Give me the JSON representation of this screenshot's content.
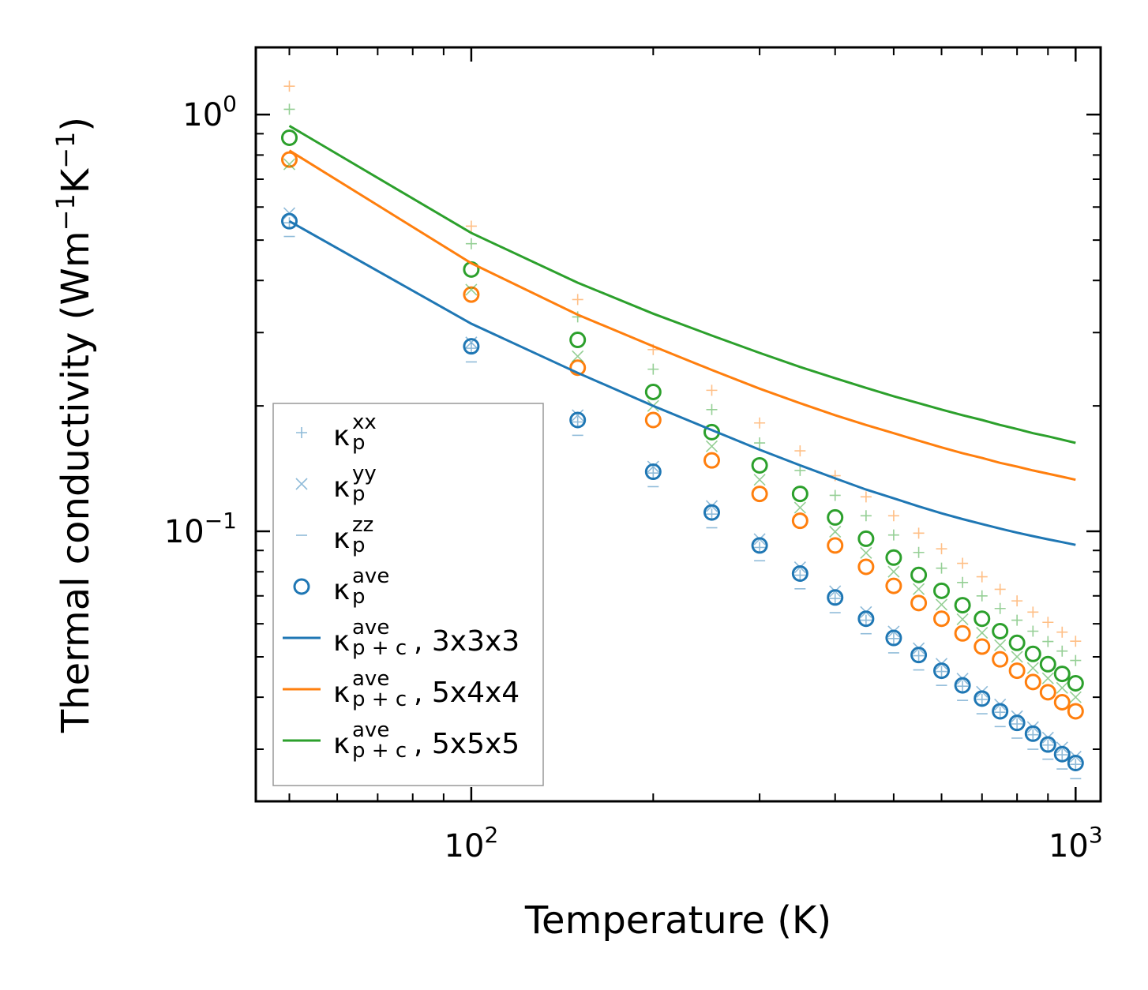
{
  "chart_data": {
    "type": "scatter",
    "xscale": "log",
    "yscale": "log",
    "xlim": [
      44,
      1100
    ],
    "ylim": [
      0.0225,
      1.45
    ],
    "xlabel": "Temperature (K)",
    "ylabel_main": "Thermal conductivity (Wm",
    "ylabel_exp1": "−1",
    "ylabel_mid": "K",
    "ylabel_exp2": "−1",
    "ylabel_end": ")",
    "x_ticks": [
      {
        "value": 100,
        "base": "10",
        "exp": "2"
      },
      {
        "value": 1000,
        "base": "10",
        "exp": "3"
      }
    ],
    "y_ticks": [
      {
        "value": 1,
        "base": "10",
        "exp": "0"
      },
      {
        "value": 0.1,
        "base": "10",
        "exp": "−1"
      }
    ],
    "x": [
      50,
      100,
      150,
      200,
      250,
      300,
      350,
      400,
      450,
      500,
      550,
      600,
      650,
      700,
      750,
      800,
      850,
      900,
      950,
      1000
    ],
    "colors": {
      "blue": "#1f77b4",
      "orange": "#ff7f0e",
      "green": "#2ca02c"
    },
    "series": [
      {
        "name": "3x3x3 kxx",
        "color": "#1f77b4",
        "marker": "plus",
        "faded": true,
        "values": [
          0.55,
          0.275,
          0.183,
          0.138,
          0.11,
          0.0915,
          0.0785,
          0.069,
          0.0612,
          0.0553,
          0.0503,
          0.0461,
          0.0425,
          0.0395,
          0.0368,
          0.0345,
          0.0325,
          0.0307,
          0.0291,
          0.0276
        ]
      },
      {
        "name": "3x3x3 kyy",
        "color": "#1f77b4",
        "marker": "cross",
        "faded": true,
        "values": [
          0.58,
          0.284,
          0.19,
          0.143,
          0.115,
          0.0958,
          0.082,
          0.0718,
          0.064,
          0.0575,
          0.0524,
          0.0481,
          0.0443,
          0.0412,
          0.0384,
          0.036,
          0.0339,
          0.032,
          0.0303,
          0.0288
        ]
      },
      {
        "name": "3x3x3 kzz",
        "color": "#1f77b4",
        "marker": "dash",
        "faded": true,
        "values": [
          0.51,
          0.255,
          0.17,
          0.128,
          0.102,
          0.085,
          0.0728,
          0.0638,
          0.0568,
          0.0511,
          0.0465,
          0.0427,
          0.0393,
          0.0365,
          0.034,
          0.0319,
          0.03,
          0.0284,
          0.0269,
          0.0255
        ]
      },
      {
        "name": "3x3x3 kave",
        "color": "#1f77b4",
        "marker": "circle",
        "faded": false,
        "values": [
          0.555,
          0.278,
          0.185,
          0.139,
          0.111,
          0.0925,
          0.0792,
          0.0694,
          0.0617,
          0.0555,
          0.0505,
          0.0463,
          0.0427,
          0.0397,
          0.037,
          0.0347,
          0.0327,
          0.0308,
          0.0292,
          0.0278
        ]
      },
      {
        "name": "5x4x4 kxx",
        "color": "#ff7f0e",
        "marker": "plus",
        "faded": true,
        "values": [
          1.17,
          0.54,
          0.36,
          0.273,
          0.218,
          0.182,
          0.156,
          0.136,
          0.121,
          0.109,
          0.099,
          0.0908,
          0.0838,
          0.0778,
          0.0726,
          0.0681,
          0.064,
          0.0605,
          0.0573,
          0.0545
        ]
      },
      {
        "name": "5x4x4 kave",
        "color": "#ff7f0e",
        "marker": "circle",
        "faded": false,
        "values": [
          0.78,
          0.37,
          0.247,
          0.185,
          0.148,
          0.123,
          0.106,
          0.0925,
          0.0822,
          0.074,
          0.0673,
          0.0617,
          0.0569,
          0.0529,
          0.0493,
          0.0463,
          0.0435,
          0.0411,
          0.0389,
          0.037
        ]
      },
      {
        "name": "5x5x5 kxx",
        "color": "#2ca02c",
        "marker": "plus",
        "faded": true,
        "values": [
          1.03,
          0.49,
          0.327,
          0.245,
          0.196,
          0.163,
          0.14,
          0.122,
          0.109,
          0.098,
          0.089,
          0.0816,
          0.0754,
          0.07,
          0.0653,
          0.0612,
          0.0576,
          0.0544,
          0.0516,
          0.049
        ]
      },
      {
        "name": "5x5x5 kyy",
        "color": "#2ca02c",
        "marker": "cross",
        "faded": true,
        "values": [
          0.76,
          0.38,
          0.263,
          0.2,
          0.16,
          0.133,
          0.114,
          0.0998,
          0.0888,
          0.08,
          0.0727,
          0.0667,
          0.0615,
          0.0571,
          0.0533,
          0.05,
          0.047,
          0.0444,
          0.0421,
          0.04
        ]
      },
      {
        "name": "5x5x5 kave",
        "color": "#2ca02c",
        "marker": "circle",
        "faded": false,
        "values": [
          0.88,
          0.425,
          0.288,
          0.216,
          0.173,
          0.144,
          0.123,
          0.108,
          0.096,
          0.0865,
          0.0786,
          0.072,
          0.0665,
          0.0617,
          0.0576,
          0.054,
          0.0508,
          0.048,
          0.0455,
          0.0432
        ]
      },
      {
        "name": "3x3x3 kp+c",
        "color": "#1f77b4",
        "marker": "line",
        "faded": false,
        "values": [
          0.555,
          0.315,
          0.24,
          0.2,
          0.175,
          0.157,
          0.144,
          0.134,
          0.126,
          0.12,
          0.1148,
          0.1105,
          0.107,
          0.1041,
          0.1015,
          0.0993,
          0.0974,
          0.0957,
          0.0942,
          0.0928
        ]
      },
      {
        "name": "5x4x4 kp+c",
        "color": "#ff7f0e",
        "marker": "line",
        "faded": false,
        "values": [
          0.82,
          0.44,
          0.331,
          0.278,
          0.244,
          0.22,
          0.203,
          0.19,
          0.18,
          0.172,
          0.165,
          0.159,
          0.154,
          0.15,
          0.146,
          0.143,
          0.14,
          0.1375,
          0.1352,
          0.133
        ]
      },
      {
        "name": "5x5x5 kp+c",
        "color": "#2ca02c",
        "marker": "line",
        "faded": false,
        "values": [
          0.94,
          0.52,
          0.395,
          0.333,
          0.295,
          0.268,
          0.248,
          0.233,
          0.221,
          0.211,
          0.203,
          0.196,
          0.19,
          0.185,
          0.18,
          0.176,
          0.172,
          0.169,
          0.166,
          0.163
        ]
      }
    ],
    "legend": {
      "location": "lower-left",
      "entries": [
        {
          "marker": "plus",
          "color": "#1f77b4",
          "faded": true,
          "symbol": "κ",
          "sub": "p",
          "sup": "xx",
          "suffix": ""
        },
        {
          "marker": "cross",
          "color": "#1f77b4",
          "faded": true,
          "symbol": "κ",
          "sub": "p",
          "sup": "yy",
          "suffix": ""
        },
        {
          "marker": "dash",
          "color": "#1f77b4",
          "faded": true,
          "symbol": "κ",
          "sub": "p",
          "sup": "zz",
          "suffix": ""
        },
        {
          "marker": "circle",
          "color": "#1f77b4",
          "faded": false,
          "symbol": "κ",
          "sub": "p",
          "sup": "ave",
          "suffix": ""
        },
        {
          "marker": "line",
          "color": "#1f77b4",
          "faded": false,
          "symbol": "κ",
          "sub": "p + c",
          "sup": "ave",
          "suffix": ", 3x3x3"
        },
        {
          "marker": "line",
          "color": "#ff7f0e",
          "faded": false,
          "symbol": "κ",
          "sub": "p + c",
          "sup": "ave",
          "suffix": ", 5x4x4"
        },
        {
          "marker": "line",
          "color": "#2ca02c",
          "faded": false,
          "symbol": "κ",
          "sub": "p + c",
          "sup": "ave",
          "suffix": ", 5x5x5"
        }
      ]
    }
  }
}
